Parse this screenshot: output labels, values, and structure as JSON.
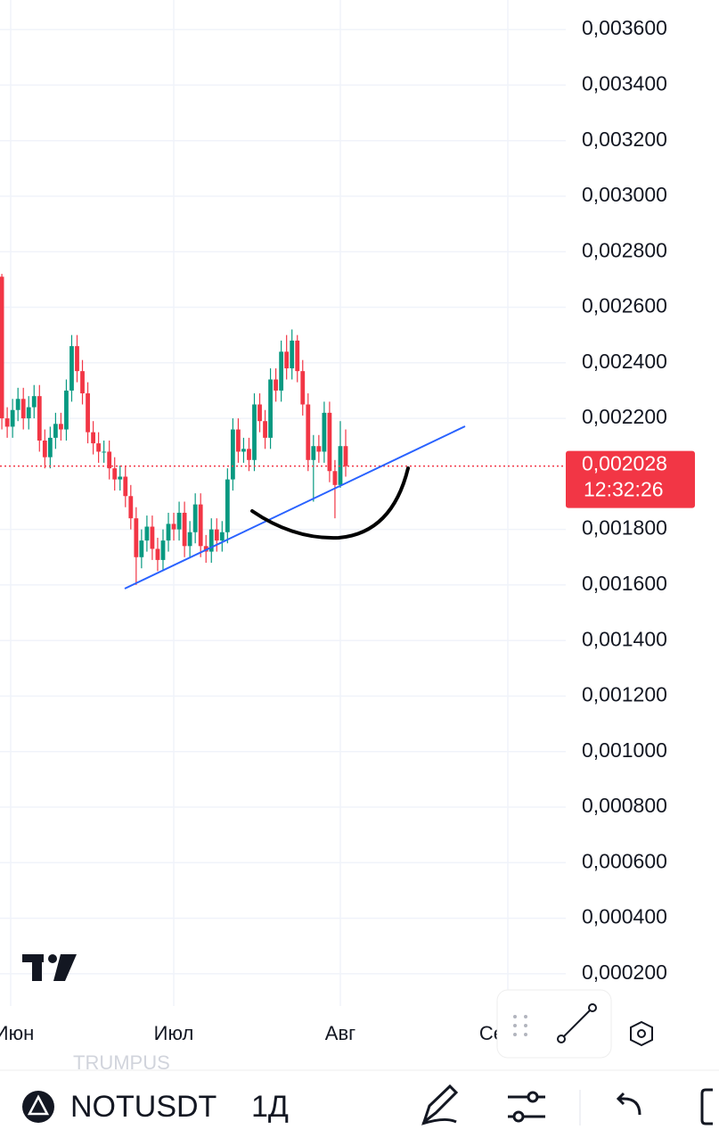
{
  "chart_data": {
    "type": "candlestick",
    "open": [
      0.00271,
      0.0022,
      0.00217,
      0.00223,
      0.00227,
      0.0022,
      0.00224,
      0.00228,
      0.00212,
      0.00206,
      0.00213,
      0.00218,
      0.00216,
      0.0023,
      0.00246,
      0.00237,
      0.00229,
      0.00215,
      0.00211,
      0.00208,
      0.00208,
      0.00202,
      0.00198,
      0.00199,
      0.00192,
      0.00184,
      0.0017,
      0.00176,
      0.00181,
      0.00173,
      0.00169,
      0.00176,
      0.00182,
      0.0018,
      0.00186,
      0.00174,
      0.00179,
      0.00189,
      0.00174,
      0.00172,
      0.0018,
      0.00176,
      0.00179,
      0.00198,
      0.00216,
      0.00208,
      0.00209,
      0.00205,
      0.00225,
      0.00219,
      0.00213,
      0.00234,
      0.0023,
      0.00244,
      0.00238,
      0.00248,
      0.00237,
      0.00225,
      0.00205,
      0.0021,
      0.00208,
      0.00222,
      0.00201,
      0.00196,
      0.0021
    ],
    "high": [
      0.00272,
      0.00224,
      0.00227,
      0.00231,
      0.00231,
      0.00228,
      0.00232,
      0.00232,
      0.00216,
      0.00217,
      0.00222,
      0.00222,
      0.00234,
      0.0025,
      0.0025,
      0.00241,
      0.00233,
      0.00219,
      0.00215,
      0.00212,
      0.00212,
      0.00206,
      0.00203,
      0.00203,
      0.00196,
      0.00188,
      0.0018,
      0.00185,
      0.00185,
      0.00177,
      0.0018,
      0.00186,
      0.00186,
      0.0019,
      0.0019,
      0.00183,
      0.00193,
      0.00193,
      0.00178,
      0.00184,
      0.00184,
      0.00183,
      0.00202,
      0.0022,
      0.0022,
      0.00213,
      0.00213,
      0.00229,
      0.00229,
      0.00223,
      0.00238,
      0.00238,
      0.00248,
      0.0025,
      0.00252,
      0.0025,
      0.00241,
      0.00229,
      0.00214,
      0.00214,
      0.00226,
      0.00226,
      0.00205,
      0.00219,
      0.00216
    ],
    "low": [
      0.00216,
      0.00213,
      0.00213,
      0.00219,
      0.00216,
      0.00216,
      0.0022,
      0.00208,
      0.00202,
      0.00202,
      0.00209,
      0.00212,
      0.00212,
      0.00226,
      0.00233,
      0.00225,
      0.00211,
      0.00207,
      0.00204,
      0.00204,
      0.00198,
      0.00194,
      0.00194,
      0.00188,
      0.0018,
      0.0016,
      0.00166,
      0.00172,
      0.00169,
      0.00165,
      0.00165,
      0.00172,
      0.00176,
      0.00176,
      0.0017,
      0.0017,
      0.00175,
      0.0017,
      0.00168,
      0.00168,
      0.00172,
      0.00172,
      0.00175,
      0.00194,
      0.00204,
      0.00204,
      0.00201,
      0.00201,
      0.00215,
      0.00209,
      0.00209,
      0.00226,
      0.00226,
      0.00234,
      0.00234,
      0.00233,
      0.00221,
      0.00201,
      0.0019,
      0.00204,
      0.00204,
      0.00197,
      0.00184,
      0.00195,
      0.00199
    ],
    "close": [
      0.0022,
      0.00217,
      0.00223,
      0.00227,
      0.0022,
      0.00224,
      0.00228,
      0.00212,
      0.00206,
      0.00213,
      0.00218,
      0.00216,
      0.0023,
      0.00246,
      0.00237,
      0.00229,
      0.00215,
      0.00211,
      0.00208,
      0.00208,
      0.00202,
      0.00198,
      0.00199,
      0.00192,
      0.00184,
      0.0017,
      0.00176,
      0.00181,
      0.00173,
      0.00169,
      0.00176,
      0.00182,
      0.0018,
      0.00186,
      0.00174,
      0.00179,
      0.00189,
      0.00174,
      0.00172,
      0.0018,
      0.00176,
      0.00179,
      0.00198,
      0.00216,
      0.00208,
      0.00209,
      0.00205,
      0.00225,
      0.00219,
      0.00213,
      0.00234,
      0.0023,
      0.00244,
      0.00238,
      0.00248,
      0.00237,
      0.00225,
      0.00205,
      0.0021,
      0.00208,
      0.00222,
      0.00201,
      0.00196,
      0.0021,
      0.002028
    ],
    "up_color": "#089981",
    "down_color": "#f23645",
    "x_labels": [
      "Июн",
      "Июл",
      "Авг",
      "Сен"
    ],
    "ylim": [
      0.0001,
      0.0037
    ],
    "yticks": [
      {
        "value": 0.0036,
        "label": "0,003600"
      },
      {
        "value": 0.0034,
        "label": "0,003400"
      },
      {
        "value": 0.0032,
        "label": "0,003200"
      },
      {
        "value": 0.003,
        "label": "0,003000"
      },
      {
        "value": 0.0028,
        "label": "0,002800"
      },
      {
        "value": 0.0026,
        "label": "0,002600"
      },
      {
        "value": 0.0024,
        "label": "0,002400"
      },
      {
        "value": 0.0022,
        "label": "0,002200"
      },
      {
        "value": 0.0018,
        "label": "0,001800"
      },
      {
        "value": 0.0016,
        "label": "0,001600"
      },
      {
        "value": 0.0014,
        "label": "0,001400"
      },
      {
        "value": 0.0012,
        "label": "0,001200"
      },
      {
        "value": 0.001,
        "label": "0,001000"
      },
      {
        "value": 0.0008,
        "label": "0,000800"
      },
      {
        "value": 0.0006,
        "label": "0,000600"
      },
      {
        "value": 0.0004,
        "label": "0,000400"
      },
      {
        "value": 0.0002,
        "label": "0,000200"
      }
    ],
    "grid": true,
    "last_price": {
      "value": 0.002028,
      "label": "0,002028"
    },
    "countdown": "12:32:26"
  },
  "toolbar": {
    "watermark": "TRUMPUS",
    "symbol": "NOTUSDT",
    "interval": "1Д"
  }
}
